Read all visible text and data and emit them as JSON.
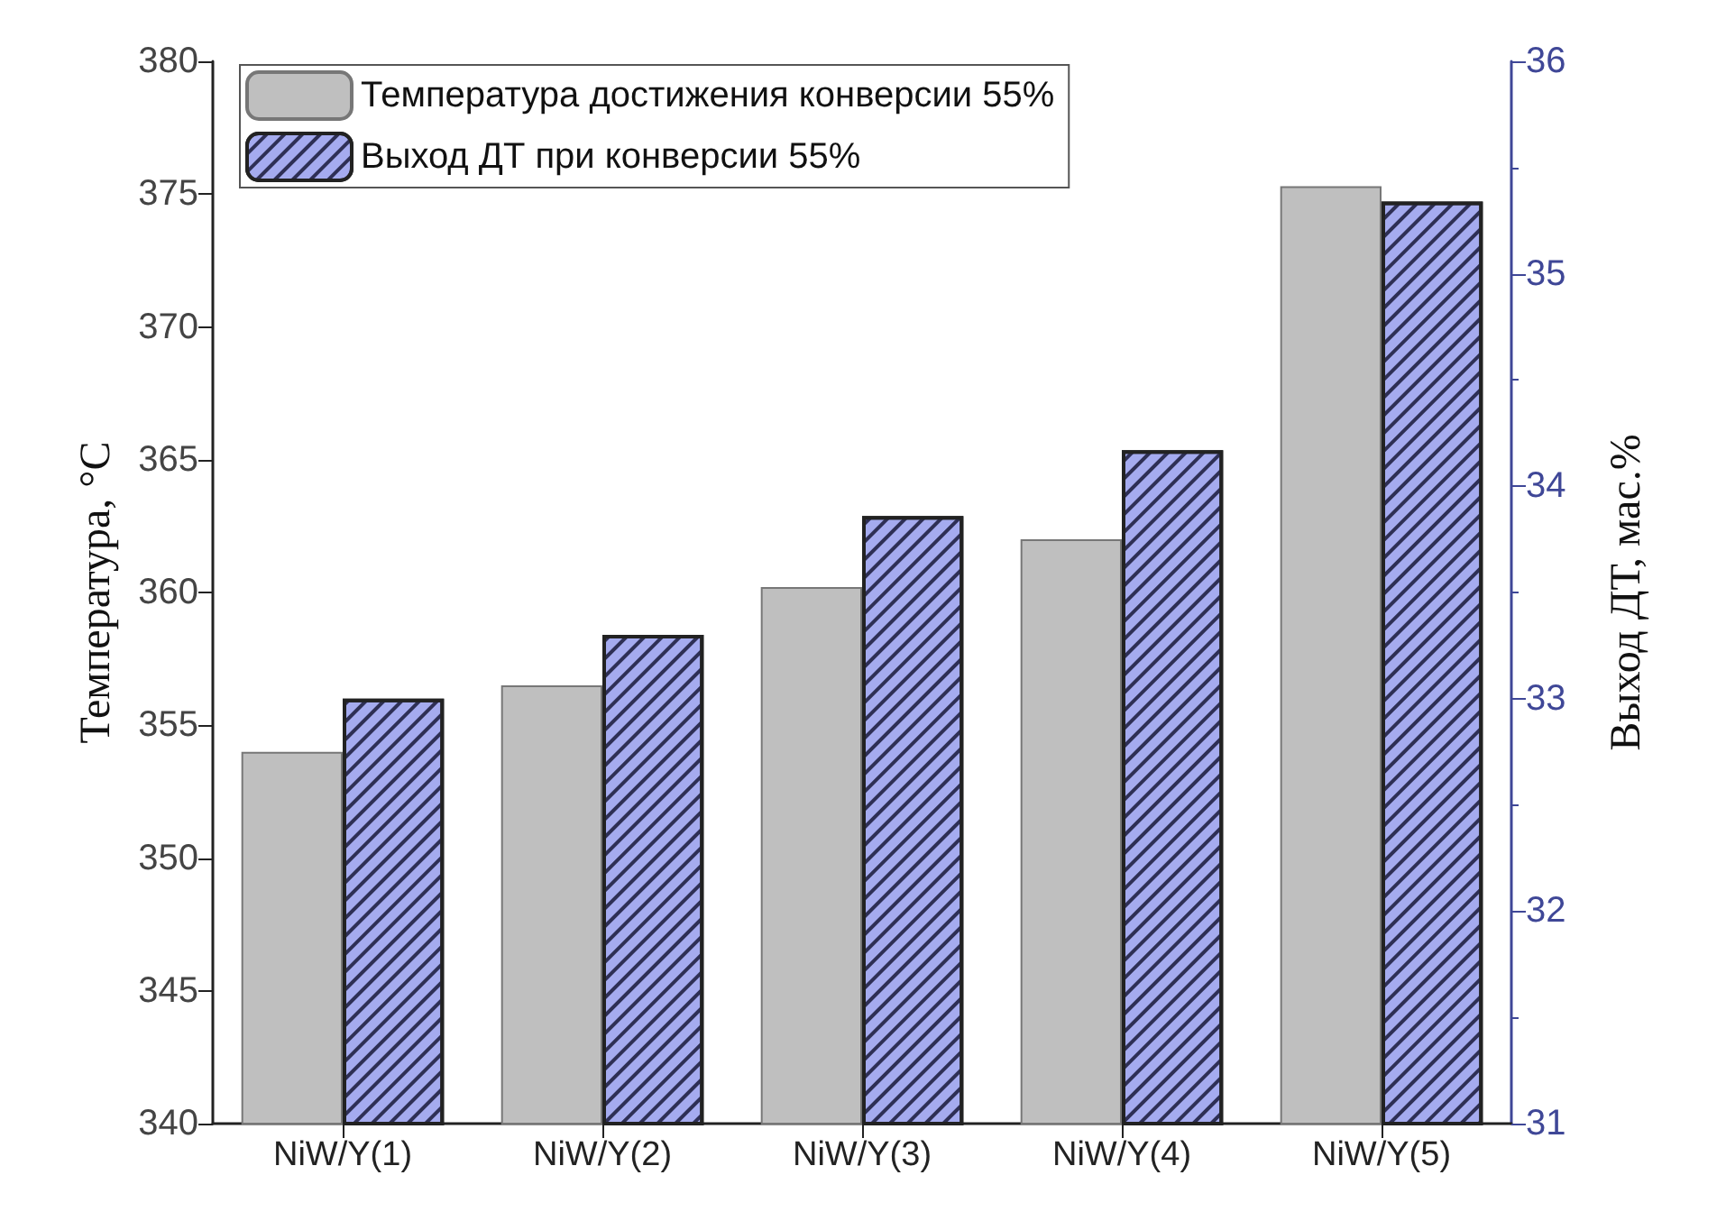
{
  "chart_data": {
    "type": "bar",
    "categories": [
      "NiW/Y(1)",
      "NiW/Y(2)",
      "NiW/Y(3)",
      "NiW/Y(4)",
      "NiW/Y(5)"
    ],
    "series": [
      {
        "name": "Температура достижения конверсии 55%",
        "color": "#bfbfbf",
        "values": [
          354.0,
          356.5,
          360.2,
          362.0,
          375.3
        ]
      },
      {
        "name": "Выход ДТ при конверсии 55%",
        "color": "#a5abef",
        "axis": "y2",
        "values": [
          33.0,
          33.3,
          33.86,
          34.17,
          35.34
        ]
      }
    ],
    "ylabel": "Температура, °C",
    "y2label": "Выход ДТ, мас.%",
    "ylim": [
      340,
      380
    ],
    "yticks": [
      340,
      345,
      350,
      355,
      360,
      365,
      370,
      375,
      380
    ],
    "y2lim": [
      31,
      36
    ],
    "y2ticks": [
      31,
      32,
      33,
      34,
      35,
      36
    ],
    "grid": false,
    "legend": "top left"
  }
}
